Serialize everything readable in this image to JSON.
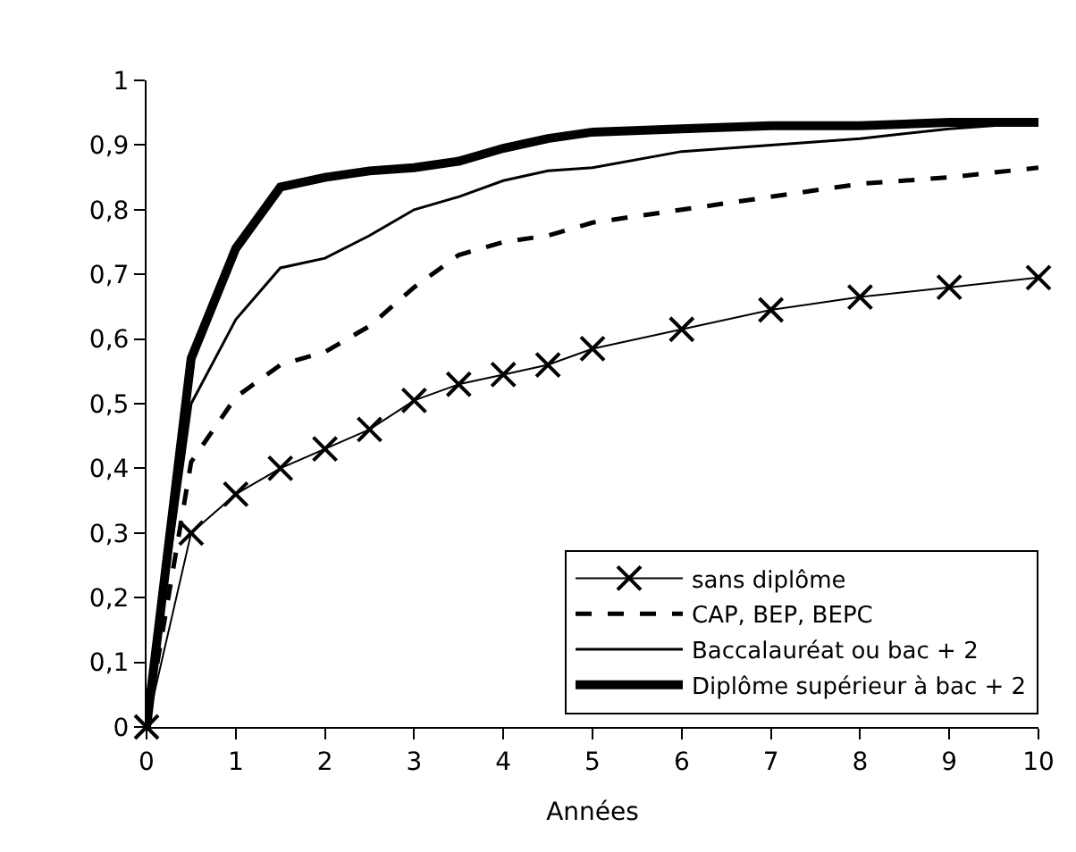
{
  "chart_data": {
    "type": "line",
    "xlabel": "Années",
    "x": [
      0,
      0.5,
      1,
      1.5,
      2,
      2.5,
      3,
      3.5,
      4,
      4.5,
      5,
      6,
      7,
      8,
      9,
      10
    ],
    "xlim": [
      0,
      10
    ],
    "xticks": [
      0,
      1,
      2,
      3,
      4,
      5,
      6,
      7,
      8,
      9,
      10
    ],
    "ylim": [
      0,
      1
    ],
    "yticks": [
      0,
      {
        "value": 0.1,
        "label": "0,1"
      },
      {
        "value": 0.2,
        "label": "0,2"
      },
      {
        "value": 0.3,
        "label": "0,3"
      },
      {
        "value": 0.4,
        "label": "0,4"
      },
      {
        "value": 0.5,
        "label": "0,5"
      },
      {
        "value": 0.6,
        "label": "0,6"
      },
      {
        "value": 0.7,
        "label": "0,7"
      },
      {
        "value": 0.8,
        "label": "0,8"
      },
      {
        "value": 0.9,
        "label": "0,9"
      },
      1
    ],
    "grid": false,
    "legend": "bottom right",
    "series": [
      {
        "name": "sans diplôme",
        "color": "#000000",
        "marker": "cross",
        "line_style": "solid",
        "values": [
          0,
          0.3,
          0.36,
          0.4,
          0.43,
          0.46,
          0.505,
          0.53,
          0.545,
          0.56,
          0.585,
          0.615,
          0.645,
          0.665,
          0.68,
          0.695
        ]
      },
      {
        "name": "CAP, BEP, BEPC",
        "color": "#000000",
        "marker": "none",
        "line_style": "dashed",
        "values": [
          0,
          0.41,
          0.51,
          0.56,
          0.58,
          0.62,
          0.68,
          0.73,
          0.75,
          0.76,
          0.78,
          0.8,
          0.82,
          0.84,
          0.85,
          0.865
        ]
      },
      {
        "name": "Baccalauréat ou bac + 2",
        "color": "#000000",
        "marker": "none",
        "line_style": "solid",
        "values": [
          0,
          0.5,
          0.63,
          0.71,
          0.725,
          0.76,
          0.8,
          0.82,
          0.845,
          0.86,
          0.865,
          0.89,
          0.9,
          0.91,
          0.925,
          0.935
        ]
      },
      {
        "name": "Diplôme supérieur à bac + 2",
        "color": "#000000",
        "marker": "none",
        "line_style": "solid",
        "values": [
          0,
          0.57,
          0.74,
          0.835,
          0.85,
          0.86,
          0.865,
          0.875,
          0.895,
          0.91,
          0.92,
          0.925,
          0.93,
          0.93,
          0.935,
          0.935
        ]
      }
    ]
  }
}
